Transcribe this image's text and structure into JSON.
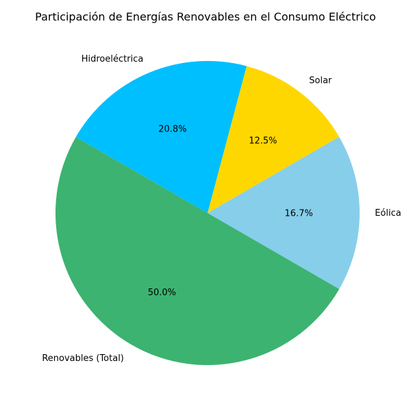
{
  "chart_data": {
    "type": "pie",
    "title": "Participación de Energías Renovables en el Consumo Eléctrico",
    "categories": [
      "Eólica",
      "Solar",
      "Hidroeléctrica",
      "Renovables (Total)"
    ],
    "values": [
      16.7,
      12.5,
      20.8,
      50.0
    ],
    "percent_labels": [
      "16.7%",
      "12.5%",
      "20.8%",
      "50.0%"
    ],
    "colors": [
      "#87CEEB",
      "#FFD700",
      "#00BFFF",
      "#3CB371"
    ],
    "start_angle_deg": -30,
    "direction": "counterclockwise",
    "legend": "none"
  }
}
